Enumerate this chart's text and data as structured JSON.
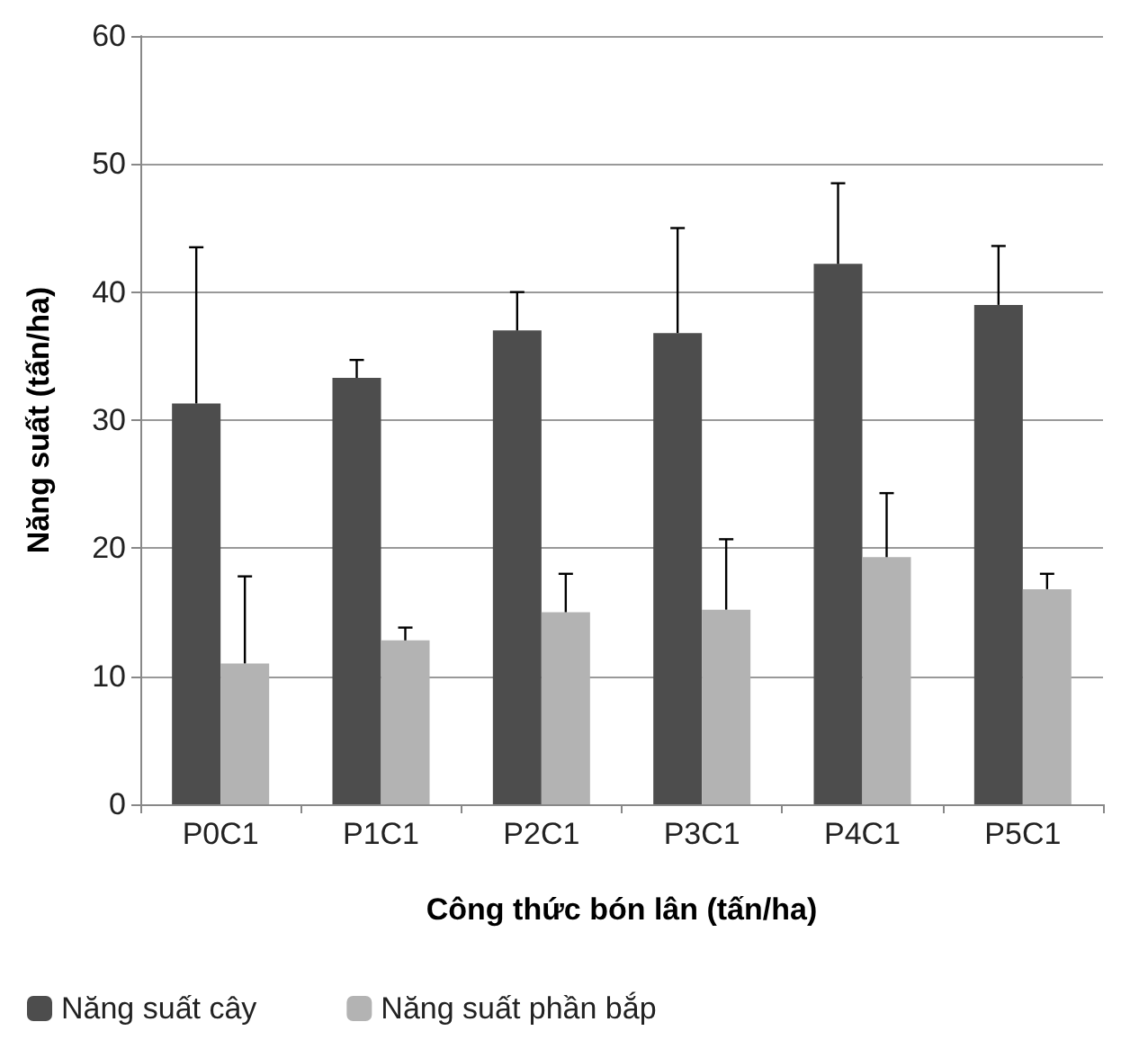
{
  "chart_data": {
    "type": "bar",
    "xlabel": "Công thức bón lân (tấn/ha)",
    "ylabel": "Năng suất (tấn/ha)",
    "categories": [
      "P0C1",
      "P1C1",
      "P2C1",
      "P3C1",
      "P4C1",
      "P5C1"
    ],
    "series": [
      {
        "name": "Năng suất cây",
        "color": "#4d4d4d",
        "values": [
          31.3,
          33.3,
          37,
          36.8,
          42.2,
          39
        ],
        "errors": [
          [
            31.3,
            43.5
          ],
          [
            33.3,
            34.7
          ],
          [
            37,
            40
          ],
          [
            36.8,
            45
          ],
          [
            42.2,
            48.5
          ],
          [
            39,
            43.6
          ]
        ]
      },
      {
        "name": "Năng suất phần bắp",
        "color": "#b3b3b3",
        "values": [
          11,
          12.8,
          15,
          15.2,
          19.3,
          16.8
        ],
        "errors": [
          [
            11,
            17.8
          ],
          [
            12.8,
            13.8
          ],
          [
            15,
            18
          ],
          [
            15.2,
            20.7
          ],
          [
            19.3,
            24.3
          ],
          [
            16.8,
            18
          ]
        ]
      }
    ],
    "ylim": [
      0,
      60
    ],
    "yticks": [
      0,
      10,
      20,
      30,
      40,
      50,
      60
    ],
    "grid": "y",
    "legend": "bottom"
  }
}
